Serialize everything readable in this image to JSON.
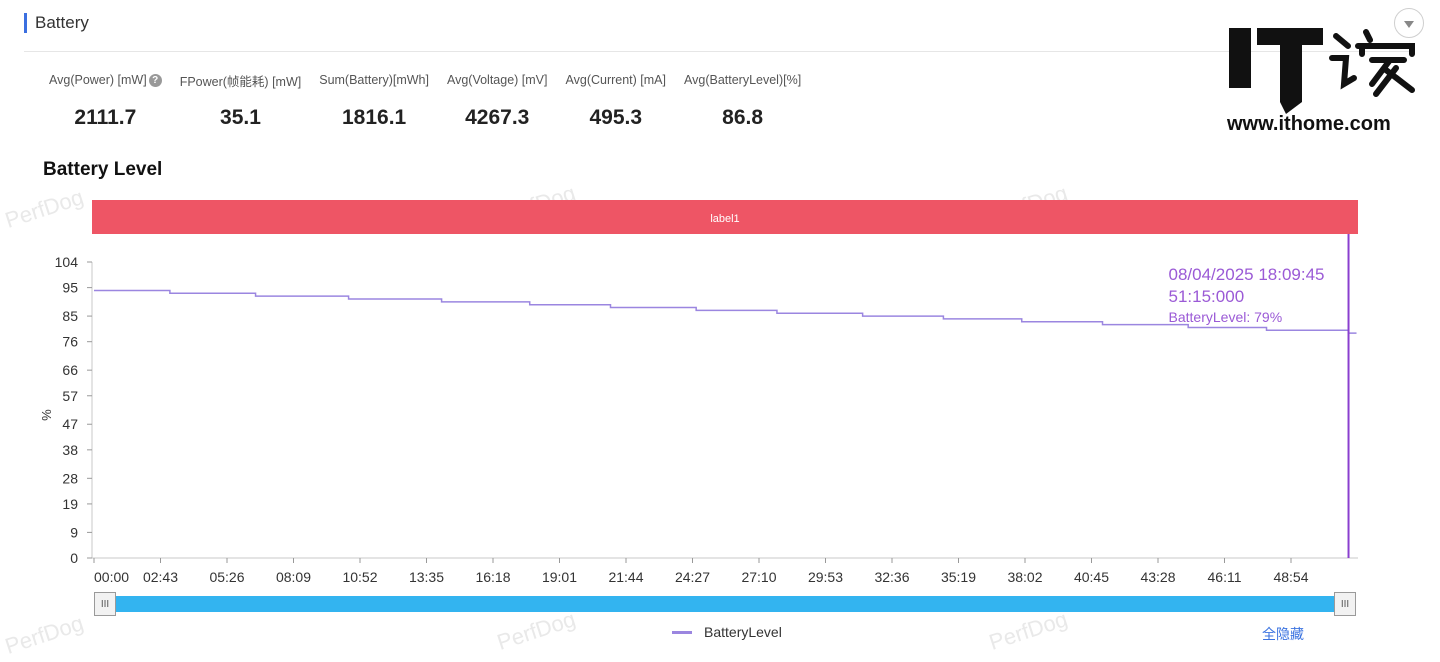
{
  "section": {
    "title": "Battery"
  },
  "metrics": [
    {
      "label": "Avg(Power) [mW]",
      "value": "2111.7",
      "help": "?"
    },
    {
      "label": "FPower(帧能耗) [mW]",
      "value": "35.1"
    },
    {
      "label": "Sum(Battery)[mWh]",
      "value": "1816.1"
    },
    {
      "label": "Avg(Voltage) [mV]",
      "value": "4267.3"
    },
    {
      "label": "Avg(Current) [mA]",
      "value": "495.3"
    },
    {
      "label": "Avg(BatteryLevel)[%]",
      "value": "86.8"
    }
  ],
  "chart_title": "Battery Level",
  "watermark_text": "PerfDog",
  "logo": {
    "text": "IT之家",
    "url": "www.ithome.com"
  },
  "colors": {
    "accent": "#3b6fe0",
    "label_band": "#ee5565",
    "series": "#9b86e0",
    "cursor": "#8a3fcf",
    "slider": "#33b4f0"
  },
  "chart_data": {
    "type": "line",
    "title": "Battery Level",
    "ylabel": "%",
    "xlabel": "",
    "label_band": "label1",
    "y_ticks": [
      0,
      9,
      19,
      28,
      38,
      47,
      57,
      66,
      76,
      85,
      95,
      104
    ],
    "ylim": [
      0,
      104
    ],
    "x_ticks": [
      "00:00",
      "02:43",
      "05:26",
      "08:09",
      "10:52",
      "13:35",
      "16:18",
      "19:01",
      "21:44",
      "24:27",
      "27:10",
      "29:53",
      "32:36",
      "35:19",
      "38:02",
      "40:45",
      "43:28",
      "46:11",
      "48:54"
    ],
    "series": [
      {
        "name": "BatteryLevel",
        "x_minutes": [
          0,
          3.1,
          6.6,
          10.4,
          14.2,
          17.8,
          21.1,
          24.6,
          27.9,
          31.4,
          34.7,
          37.9,
          41.2,
          44.7,
          47.9,
          51.25
        ],
        "values": [
          94,
          93,
          92,
          91,
          90,
          89,
          88,
          87,
          86,
          85,
          84,
          83,
          82,
          81,
          80,
          79
        ]
      }
    ],
    "tooltip": {
      "date": "08/04/2025 18:09:45",
      "elapsed": "51:15:000",
      "value_text": "BatteryLevel: 79%"
    },
    "x_end_minutes": 51.25
  },
  "legend": [
    {
      "name": "BatteryLevel"
    }
  ],
  "controls": {
    "hide_all": "全隐藏",
    "slider_grip": "III"
  }
}
